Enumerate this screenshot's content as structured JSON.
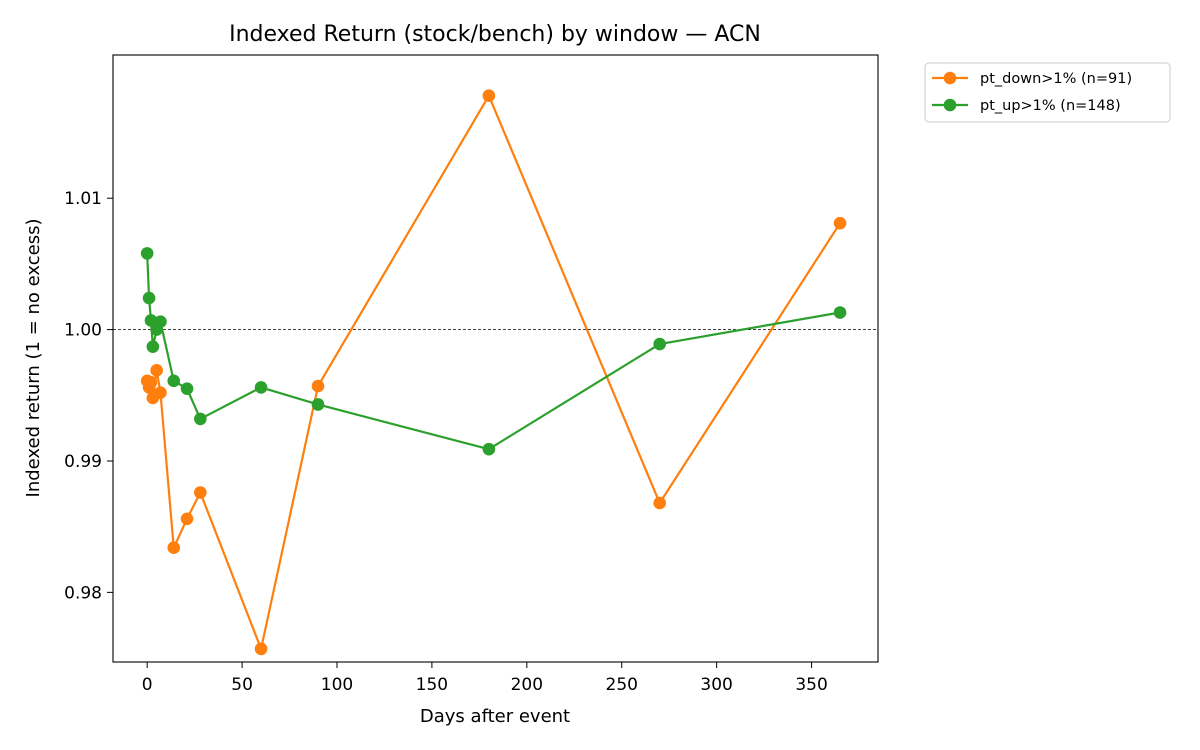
{
  "chart_data": {
    "type": "line",
    "title": "Indexed Return (stock/bench) by window — ACN",
    "xlabel": "Days after event",
    "ylabel": "Indexed return (1 = no excess)",
    "xlim": [
      -18,
      385
    ],
    "ylim": [
      0.9747,
      1.0209
    ],
    "x_ticks": [
      0,
      50,
      100,
      150,
      200,
      250,
      300,
      350
    ],
    "y_ticks": [
      0.98,
      0.99,
      1.0,
      1.01
    ],
    "x_tick_labels": [
      "0",
      "50",
      "100",
      "150",
      "200",
      "250",
      "300",
      "350"
    ],
    "y_tick_labels": [
      "0.98",
      "0.99",
      "1.00",
      "1.01"
    ],
    "reference_line": {
      "y": 1.0,
      "style": "dashed",
      "color": "#000000"
    },
    "grid": false,
    "legend_position": "outside upper right",
    "series": [
      {
        "name": "pt_down>1% (n=91)",
        "color": "#ff7f0e",
        "marker": "circle",
        "x": [
          0,
          1,
          2,
          3,
          5,
          7,
          14,
          21,
          28,
          60,
          90,
          180,
          270,
          365
        ],
        "y": [
          0.9961,
          0.9956,
          0.996,
          0.9948,
          0.9969,
          0.9952,
          0.9834,
          0.9856,
          0.9876,
          0.9757,
          0.9957,
          1.0178,
          0.9868,
          1.0081
        ]
      },
      {
        "name": "pt_up>1% (n=148)",
        "color": "#2ca02c",
        "marker": "circle",
        "x": [
          0,
          1,
          2,
          3,
          5,
          7,
          14,
          21,
          28,
          60,
          90,
          180,
          270,
          365
        ],
        "y": [
          1.0058,
          1.0024,
          1.0007,
          0.9987,
          1.0,
          1.0006,
          0.9961,
          0.9955,
          0.9932,
          0.9956,
          0.9943,
          0.9909,
          0.9989,
          1.0013
        ]
      }
    ]
  }
}
